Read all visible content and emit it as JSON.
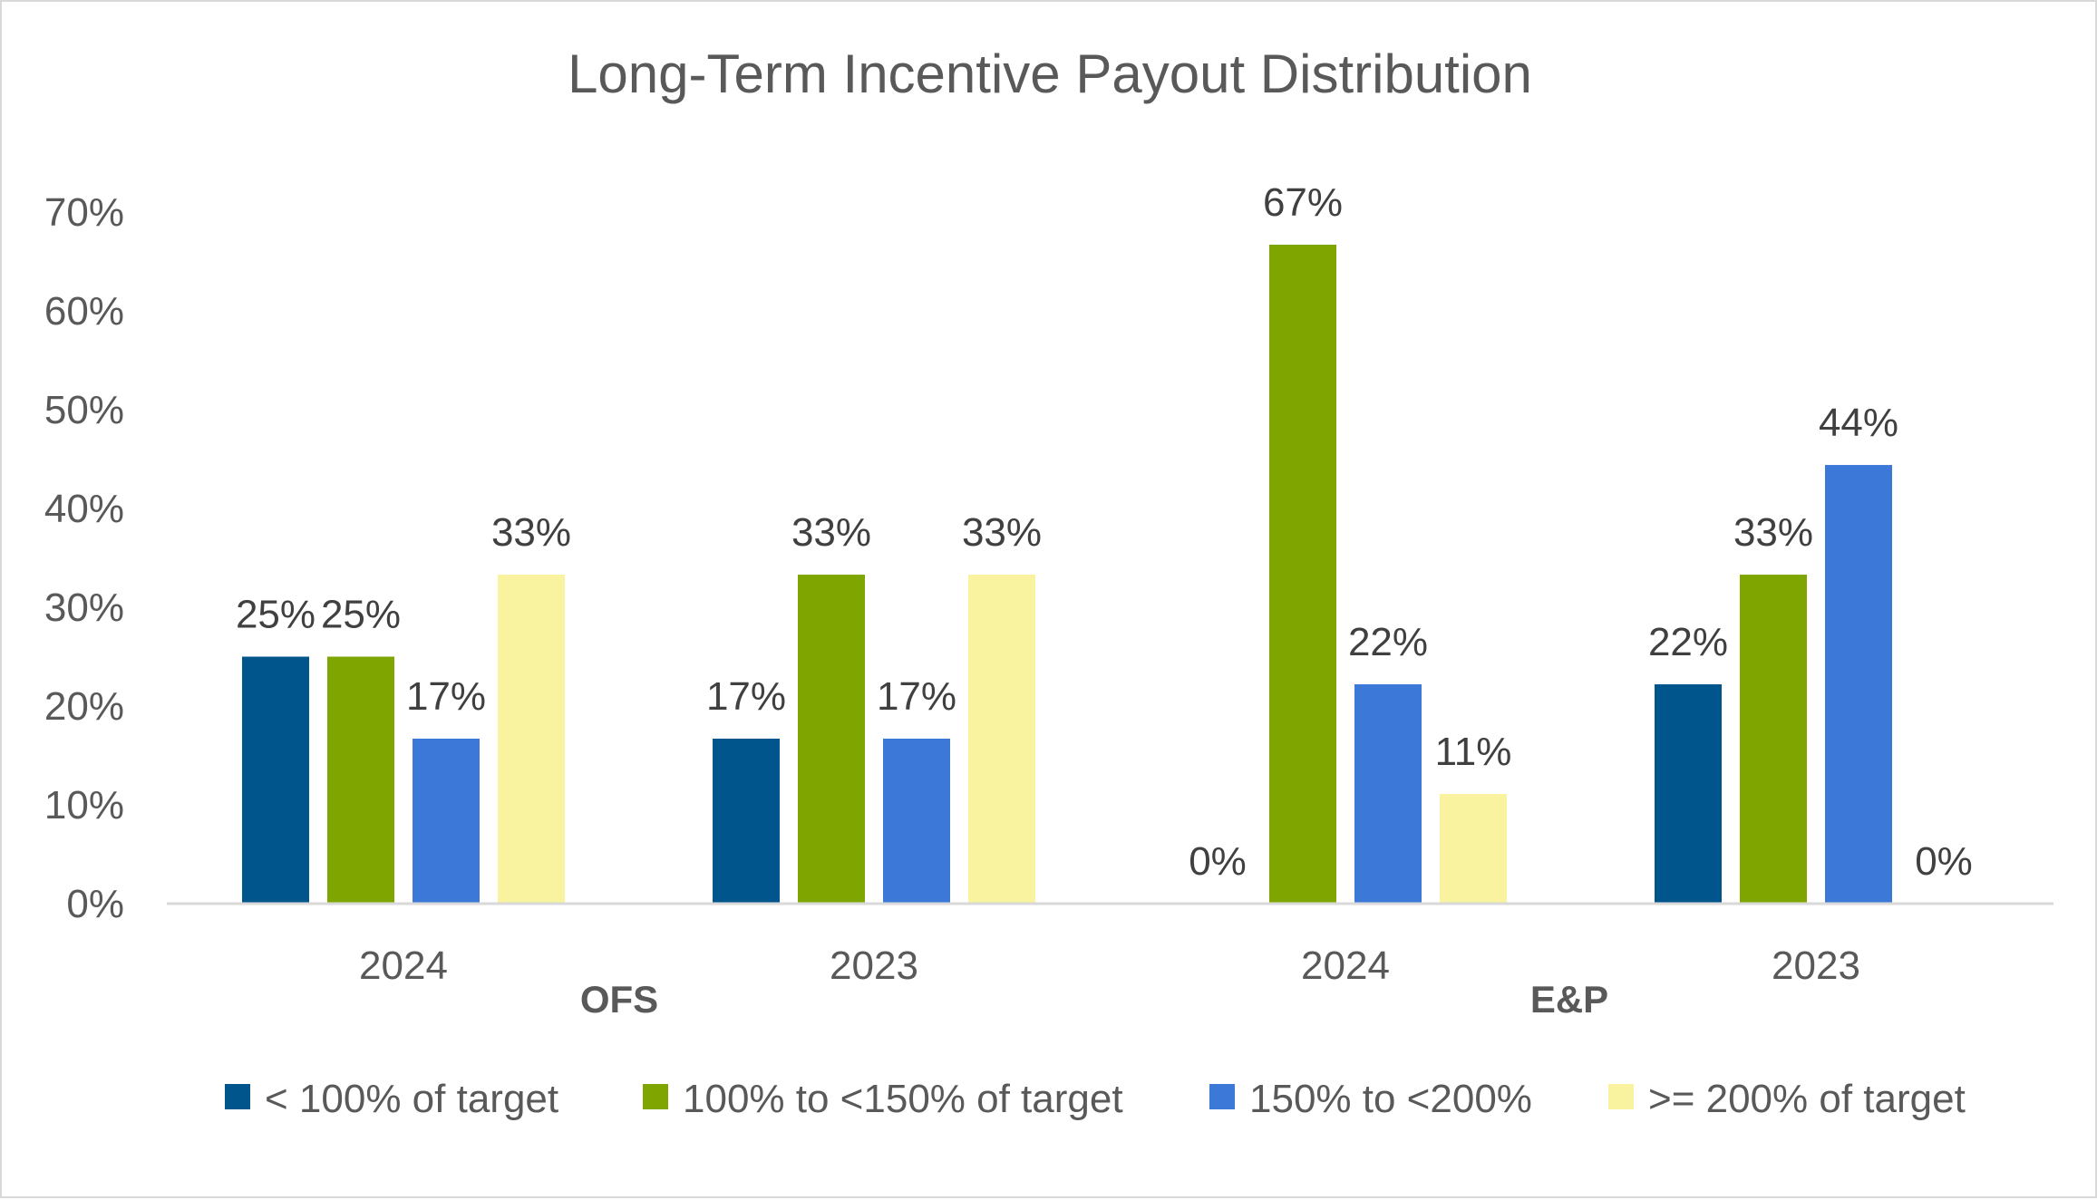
{
  "chart_data": {
    "type": "bar",
    "title": "Long-Term Incentive Payout Distribution",
    "xlabel": "",
    "ylabel": "",
    "ylim": [
      0,
      70
    ],
    "y_ticks": [
      "70%",
      "60%",
      "50%",
      "40%",
      "30%",
      "20%",
      "10%",
      "0%"
    ],
    "y_tick_values": [
      70,
      60,
      50,
      40,
      30,
      20,
      10,
      0
    ],
    "groups": [
      {
        "name": "OFS",
        "categories": [
          "2024",
          "2023"
        ]
      },
      {
        "name": "E&P",
        "categories": [
          "2024",
          "2023"
        ]
      }
    ],
    "categories": [
      "2024",
      "2023",
      "2024",
      "2023"
    ],
    "series": [
      {
        "name": "< 100% of target",
        "color": "#00558c",
        "values": [
          25,
          16.7,
          0,
          22.2
        ],
        "labels": [
          "25%",
          "17%",
          "0%",
          "22%"
        ]
      },
      {
        "name": "100% to <150% of target",
        "color": "#7fa600",
        "values": [
          25,
          33.3,
          66.7,
          33.3
        ],
        "labels": [
          "25%",
          "33%",
          "67%",
          "33%"
        ]
      },
      {
        "name": "150% to <200%",
        "color": "#3c78d8",
        "values": [
          16.7,
          16.7,
          22.2,
          44.4
        ],
        "labels": [
          "17%",
          "17%",
          "22%",
          "44%"
        ]
      },
      {
        "name": ">= 200% of target",
        "color": "#f9f29f",
        "values": [
          33.3,
          33.3,
          11.1,
          0
        ],
        "labels": [
          "33%",
          "33%",
          "11%",
          "0%"
        ]
      }
    ],
    "grid": false,
    "legend_position": "bottom"
  }
}
